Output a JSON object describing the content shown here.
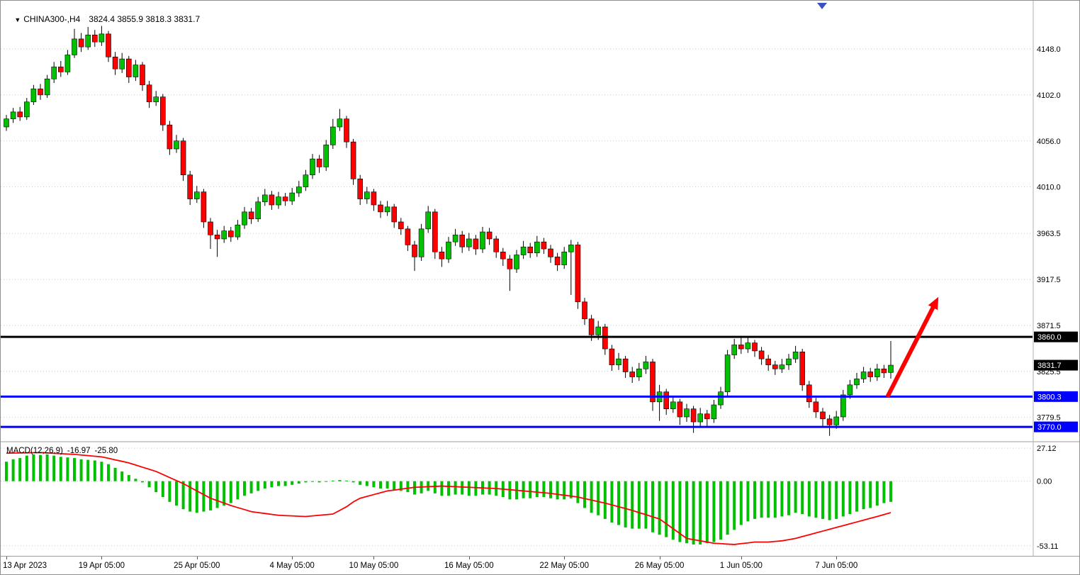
{
  "header": {
    "marker_glyph": "▼",
    "symbol_timeframe": "CHINA300-,H4",
    "ohlc": "3824.4 3855.9 3818.3 3831.7"
  },
  "macd_label": {
    "name": "MACD(12,26,9)",
    "value_main": "-16.97",
    "value_signal": "-25.80"
  },
  "chart_data": {
    "type": "candlestick+macd",
    "symbol": "CHINA300-",
    "timeframe": "H4",
    "colors": {
      "bull": "#00C000",
      "bear": "#FF0000",
      "wick": "#000000",
      "histogram": "#00C000",
      "signal_line": "#FF0000",
      "grid": "#C8C8C8",
      "axis_text": "#000000",
      "tag_text": "#FFFFFF",
      "level_black": "#000000",
      "level_blue": "#0000FF"
    },
    "main": {
      "ylim": [
        3758,
        4178.5
      ],
      "ytick_values": [
        4148.0,
        4102.0,
        4056.0,
        4010.0,
        3963.5,
        3917.5,
        3871.5,
        3825.5,
        3779.5
      ],
      "ytick_labels": [
        "4148.0",
        "4102.0",
        "4056.0",
        "4010.0",
        "3963.5",
        "3917.5",
        "3871.5",
        "3825.5",
        "3779.5"
      ],
      "hlines": [
        {
          "price": 3860.0,
          "color": "#000000",
          "width": 3
        },
        {
          "price": 3800.3,
          "color": "#0000FF",
          "width": 3
        },
        {
          "price": 3770.0,
          "color": "#0000FF",
          "width": 3
        }
      ],
      "price_tags": [
        {
          "label": "3860.0",
          "price": 3860.0,
          "bg": "#000000"
        },
        {
          "label": "3831.7",
          "price": 3831.7,
          "bg": "#000000"
        },
        {
          "label": "3800.3",
          "price": 3800.3,
          "bg": "#0000FF"
        },
        {
          "label": "3770.0",
          "price": 3770.0,
          "bg": "#0000FF"
        }
      ],
      "arrow": {
        "from_bar": 129.5,
        "from_price": 3800,
        "to_bar": 137,
        "to_price": 3900,
        "color": "#FF0000"
      },
      "candles": [
        [
          4070,
          4082,
          4066,
          4078
        ],
        [
          4078,
          4089,
          4074,
          4085
        ],
        [
          4085,
          4090,
          4076,
          4080
        ],
        [
          4080,
          4099,
          4077,
          4095
        ],
        [
          4095,
          4112,
          4092,
          4108
        ],
        [
          4108,
          4113,
          4097,
          4102
        ],
        [
          4102,
          4122,
          4099,
          4118
        ],
        [
          4118,
          4135,
          4114,
          4130
        ],
        [
          4130,
          4136,
          4120,
          4125
        ],
        [
          4125,
          4147,
          4122,
          4142
        ],
        [
          4142,
          4168,
          4139,
          4158
        ],
        [
          4158,
          4164,
          4145,
          4150
        ],
        [
          4150,
          4170,
          4147,
          4162
        ],
        [
          4162,
          4167,
          4150,
          4155
        ],
        [
          4155,
          4171,
          4151,
          4163
        ],
        [
          4163,
          4166,
          4135,
          4140
        ],
        [
          4140,
          4145,
          4122,
          4128
        ],
        [
          4128,
          4144,
          4124,
          4138
        ],
        [
          4138,
          4141,
          4114,
          4120
        ],
        [
          4120,
          4137,
          4116,
          4132
        ],
        [
          4132,
          4135,
          4106,
          4112
        ],
        [
          4112,
          4116,
          4089,
          4095
        ],
        [
          4095,
          4106,
          4091,
          4100
        ],
        [
          4100,
          4103,
          4066,
          4072
        ],
        [
          4072,
          4076,
          4042,
          4048
        ],
        [
          4048,
          4062,
          4044,
          4056
        ],
        [
          4056,
          4059,
          4016,
          4022
        ],
        [
          4022,
          4026,
          3992,
          3998
        ],
        [
          3998,
          4011,
          3994,
          4005
        ],
        [
          4005,
          4008,
          3969,
          3975
        ],
        [
          3975,
          3979,
          3948,
          3962
        ],
        [
          3962,
          3967,
          3940,
          3958
        ],
        [
          3958,
          3971,
          3954,
          3966
        ],
        [
          3966,
          3970,
          3955,
          3960
        ],
        [
          3960,
          3977,
          3957,
          3972
        ],
        [
          3972,
          3990,
          3968,
          3985
        ],
        [
          3985,
          3989,
          3973,
          3978
        ],
        [
          3978,
          4000,
          3975,
          3995
        ],
        [
          3995,
          4008,
          3991,
          4002
        ],
        [
          4002,
          4006,
          3987,
          3992
        ],
        [
          3992,
          4005,
          3988,
          4000
        ],
        [
          4000,
          4004,
          3991,
          3996
        ],
        [
          3996,
          4009,
          3992,
          4004
        ],
        [
          4004,
          4016,
          4000,
          4010
        ],
        [
          4010,
          4027,
          4006,
          4022
        ],
        [
          4022,
          4043,
          4018,
          4038
        ],
        [
          4038,
          4042,
          4024,
          4030
        ],
        [
          4030,
          4057,
          4026,
          4052
        ],
        [
          4052,
          4078,
          4048,
          4070
        ],
        [
          4070,
          4088,
          4066,
          4078
        ],
        [
          4078,
          4081,
          4049,
          4055
        ],
        [
          4055,
          4058,
          4012,
          4018
        ],
        [
          4018,
          4022,
          3992,
          3998
        ],
        [
          3998,
          4010,
          3993,
          4005
        ],
        [
          4005,
          4008,
          3986,
          3992
        ],
        [
          3992,
          3996,
          3979,
          3985
        ],
        [
          3985,
          3996,
          3981,
          3990
        ],
        [
          3990,
          3993,
          3969,
          3975
        ],
        [
          3975,
          3979,
          3962,
          3968
        ],
        [
          3968,
          3971,
          3946,
          3952
        ],
        [
          3952,
          3956,
          3926,
          3940
        ],
        [
          3940,
          3973,
          3936,
          3968
        ],
        [
          3968,
          3991,
          3964,
          3985
        ],
        [
          3985,
          3988,
          3938,
          3945
        ],
        [
          3945,
          3950,
          3930,
          3938
        ],
        [
          3938,
          3960,
          3934,
          3955
        ],
        [
          3955,
          3968,
          3951,
          3962
        ],
        [
          3962,
          3966,
          3944,
          3950
        ],
        [
          3950,
          3964,
          3946,
          3958
        ],
        [
          3958,
          3962,
          3942,
          3948
        ],
        [
          3948,
          3970,
          3944,
          3965
        ],
        [
          3965,
          3969,
          3952,
          3958
        ],
        [
          3958,
          3961,
          3939,
          3945
        ],
        [
          3945,
          3949,
          3931,
          3938
        ],
        [
          3938,
          3942,
          3906,
          3928
        ],
        [
          3928,
          3947,
          3924,
          3942
        ],
        [
          3942,
          3956,
          3938,
          3950
        ],
        [
          3950,
          3954,
          3939,
          3944
        ],
        [
          3944,
          3961,
          3940,
          3955
        ],
        [
          3955,
          3959,
          3943,
          3948
        ],
        [
          3948,
          3952,
          3934,
          3940
        ],
        [
          3940,
          3944,
          3926,
          3932
        ],
        [
          3932,
          3950,
          3928,
          3945
        ],
        [
          3945,
          3957,
          3902,
          3952
        ],
        [
          3952,
          3955,
          3888,
          3895
        ],
        [
          3895,
          3899,
          3872,
          3878
        ],
        [
          3878,
          3882,
          3856,
          3862
        ],
        [
          3862,
          3876,
          3857,
          3870
        ],
        [
          3870,
          3873,
          3842,
          3848
        ],
        [
          3848,
          3852,
          3826,
          3832
        ],
        [
          3832,
          3844,
          3827,
          3838
        ],
        [
          3838,
          3841,
          3819,
          3825
        ],
        [
          3825,
          3830,
          3814,
          3820
        ],
        [
          3820,
          3834,
          3816,
          3828
        ],
        [
          3828,
          3841,
          3823,
          3835
        ],
        [
          3835,
          3838,
          3786,
          3795
        ],
        [
          3795,
          3812,
          3776,
          3805
        ],
        [
          3805,
          3808,
          3782,
          3788
        ],
        [
          3788,
          3801,
          3784,
          3795
        ],
        [
          3795,
          3798,
          3772,
          3780
        ],
        [
          3780,
          3793,
          3775,
          3788
        ],
        [
          3788,
          3791,
          3764,
          3775
        ],
        [
          3775,
          3789,
          3770,
          3783
        ],
        [
          3783,
          3787,
          3771,
          3778
        ],
        [
          3778,
          3797,
          3774,
          3792
        ],
        [
          3792,
          3810,
          3788,
          3805
        ],
        [
          3805,
          3847,
          3800,
          3842
        ],
        [
          3842,
          3858,
          3838,
          3852
        ],
        [
          3852,
          3861,
          3843,
          3848
        ],
        [
          3848,
          3860,
          3844,
          3854
        ],
        [
          3854,
          3857,
          3840,
          3846
        ],
        [
          3846,
          3850,
          3832,
          3838
        ],
        [
          3838,
          3842,
          3826,
          3832
        ],
        [
          3832,
          3836,
          3822,
          3828
        ],
        [
          3828,
          3838,
          3824,
          3832
        ],
        [
          3832,
          3843,
          3827,
          3838
        ],
        [
          3838,
          3851,
          3834,
          3845
        ],
        [
          3845,
          3848,
          3806,
          3812
        ],
        [
          3812,
          3816,
          3789,
          3795
        ],
        [
          3795,
          3799,
          3779,
          3785
        ],
        [
          3785,
          3789,
          3770,
          3778
        ],
        [
          3778,
          3782,
          3761,
          3772
        ],
        [
          3772,
          3786,
          3768,
          3780
        ],
        [
          3780,
          3807,
          3776,
          3802
        ],
        [
          3802,
          3817,
          3798,
          3812
        ],
        [
          3812,
          3824,
          3808,
          3818
        ],
        [
          3818,
          3830,
          3814,
          3825
        ],
        [
          3825,
          3829,
          3815,
          3820
        ],
        [
          3820,
          3833,
          3816,
          3828
        ],
        [
          3828,
          3832,
          3819,
          3824
        ],
        [
          3824.4,
          3855.9,
          3818.3,
          3831.7
        ]
      ]
    },
    "macd": {
      "ylim": [
        -59.6,
        30.1
      ],
      "ytick_values": [
        27.12,
        0,
        -53.11
      ],
      "ytick_labels": [
        "27.12",
        "0.00",
        "-53.11"
      ],
      "histogram": [
        16,
        18,
        19,
        21,
        22,
        21.5,
        22,
        21,
        20,
        19.5,
        19,
        18,
        17.5,
        17,
        16,
        14,
        11,
        8,
        5,
        2,
        -1,
        -5,
        -9,
        -13,
        -17,
        -20,
        -23,
        -25,
        -26,
        -25,
        -24,
        -22,
        -20,
        -18,
        -15,
        -12,
        -10,
        -8,
        -6,
        -5,
        -4,
        -4,
        -3,
        -2,
        -1,
        -0.5,
        -1,
        -0.5,
        0.5,
        1,
        0.5,
        -1,
        -3,
        -4,
        -5,
        -6,
        -6,
        -7,
        -8,
        -9,
        -11,
        -10,
        -8,
        -10,
        -12,
        -12,
        -11,
        -11,
        -12,
        -12,
        -11,
        -11,
        -12,
        -13,
        -15,
        -15,
        -14,
        -14,
        -13,
        -13,
        -14,
        -15,
        -15,
        -14,
        -18,
        -22,
        -26,
        -28,
        -31,
        -34,
        -36,
        -38,
        -39,
        -39,
        -39,
        -42,
        -44,
        -46,
        -48,
        -50,
        -51,
        -52,
        -52,
        -51,
        -50,
        -48,
        -44,
        -40,
        -36,
        -33,
        -31,
        -30,
        -30,
        -30,
        -29,
        -28,
        -26,
        -27,
        -29,
        -30,
        -31,
        -32,
        -31,
        -29,
        -27,
        -25,
        -23,
        -22,
        -20,
        -18,
        -16.97
      ],
      "signal": [
        23,
        23.1,
        23.2,
        23.3,
        23.4,
        23.5,
        23.2,
        22.9,
        22.6,
        22.3,
        22,
        21.5,
        21,
        20.5,
        20,
        18.8,
        17.5,
        16.3,
        15,
        13.3,
        11.5,
        9.8,
        8,
        5.5,
        3,
        0.5,
        -2,
        -5,
        -8,
        -11,
        -14,
        -16,
        -18,
        -20,
        -21.7,
        -23.3,
        -25,
        -25.8,
        -26.5,
        -27.3,
        -28,
        -28.3,
        -28.5,
        -28.8,
        -29,
        -28.5,
        -28,
        -27.5,
        -27,
        -24,
        -21,
        -17,
        -14,
        -12.5,
        -11,
        -9.5,
        -8,
        -7.3,
        -6.5,
        -5.8,
        -5,
        -4.8,
        -4.5,
        -4.3,
        -4,
        -4.3,
        -4.5,
        -4.8,
        -5,
        -5.3,
        -5.5,
        -5.8,
        -6,
        -6.5,
        -7,
        -7.5,
        -8,
        -8.5,
        -9,
        -9.5,
        -10,
        -10.8,
        -11.5,
        -12.3,
        -13,
        -14.3,
        -15.5,
        -16.8,
        -18,
        -19.5,
        -21,
        -22.5,
        -24,
        -25.8,
        -27.5,
        -29.3,
        -31,
        -35,
        -39,
        -43,
        -47,
        -48,
        -49,
        -50,
        -51,
        -51.3,
        -51.7,
        -52,
        -51.3,
        -50.7,
        -50,
        -50,
        -50,
        -49.5,
        -49,
        -48,
        -47,
        -45.5,
        -44,
        -42.5,
        -41,
        -39.5,
        -38,
        -36.5,
        -35,
        -33.5,
        -32,
        -30.5,
        -29,
        -27.4,
        -25.8
      ]
    },
    "x_labels": [
      {
        "text": "13 Apr 2023",
        "bar": 0
      },
      {
        "text": "19 Apr 05:00",
        "bar": 14
      },
      {
        "text": "25 Apr 05:00",
        "bar": 28
      },
      {
        "text": "4 May 05:00",
        "bar": 42
      },
      {
        "text": "10 May 05:00",
        "bar": 54
      },
      {
        "text": "16 May 05:00",
        "bar": 68
      },
      {
        "text": "22 May 05:00",
        "bar": 82
      },
      {
        "text": "26 May 05:00",
        "bar": 96
      },
      {
        "text": "1 Jun 05:00",
        "bar": 108
      },
      {
        "text": "7 Jun 05:00",
        "bar": 122
      }
    ]
  }
}
